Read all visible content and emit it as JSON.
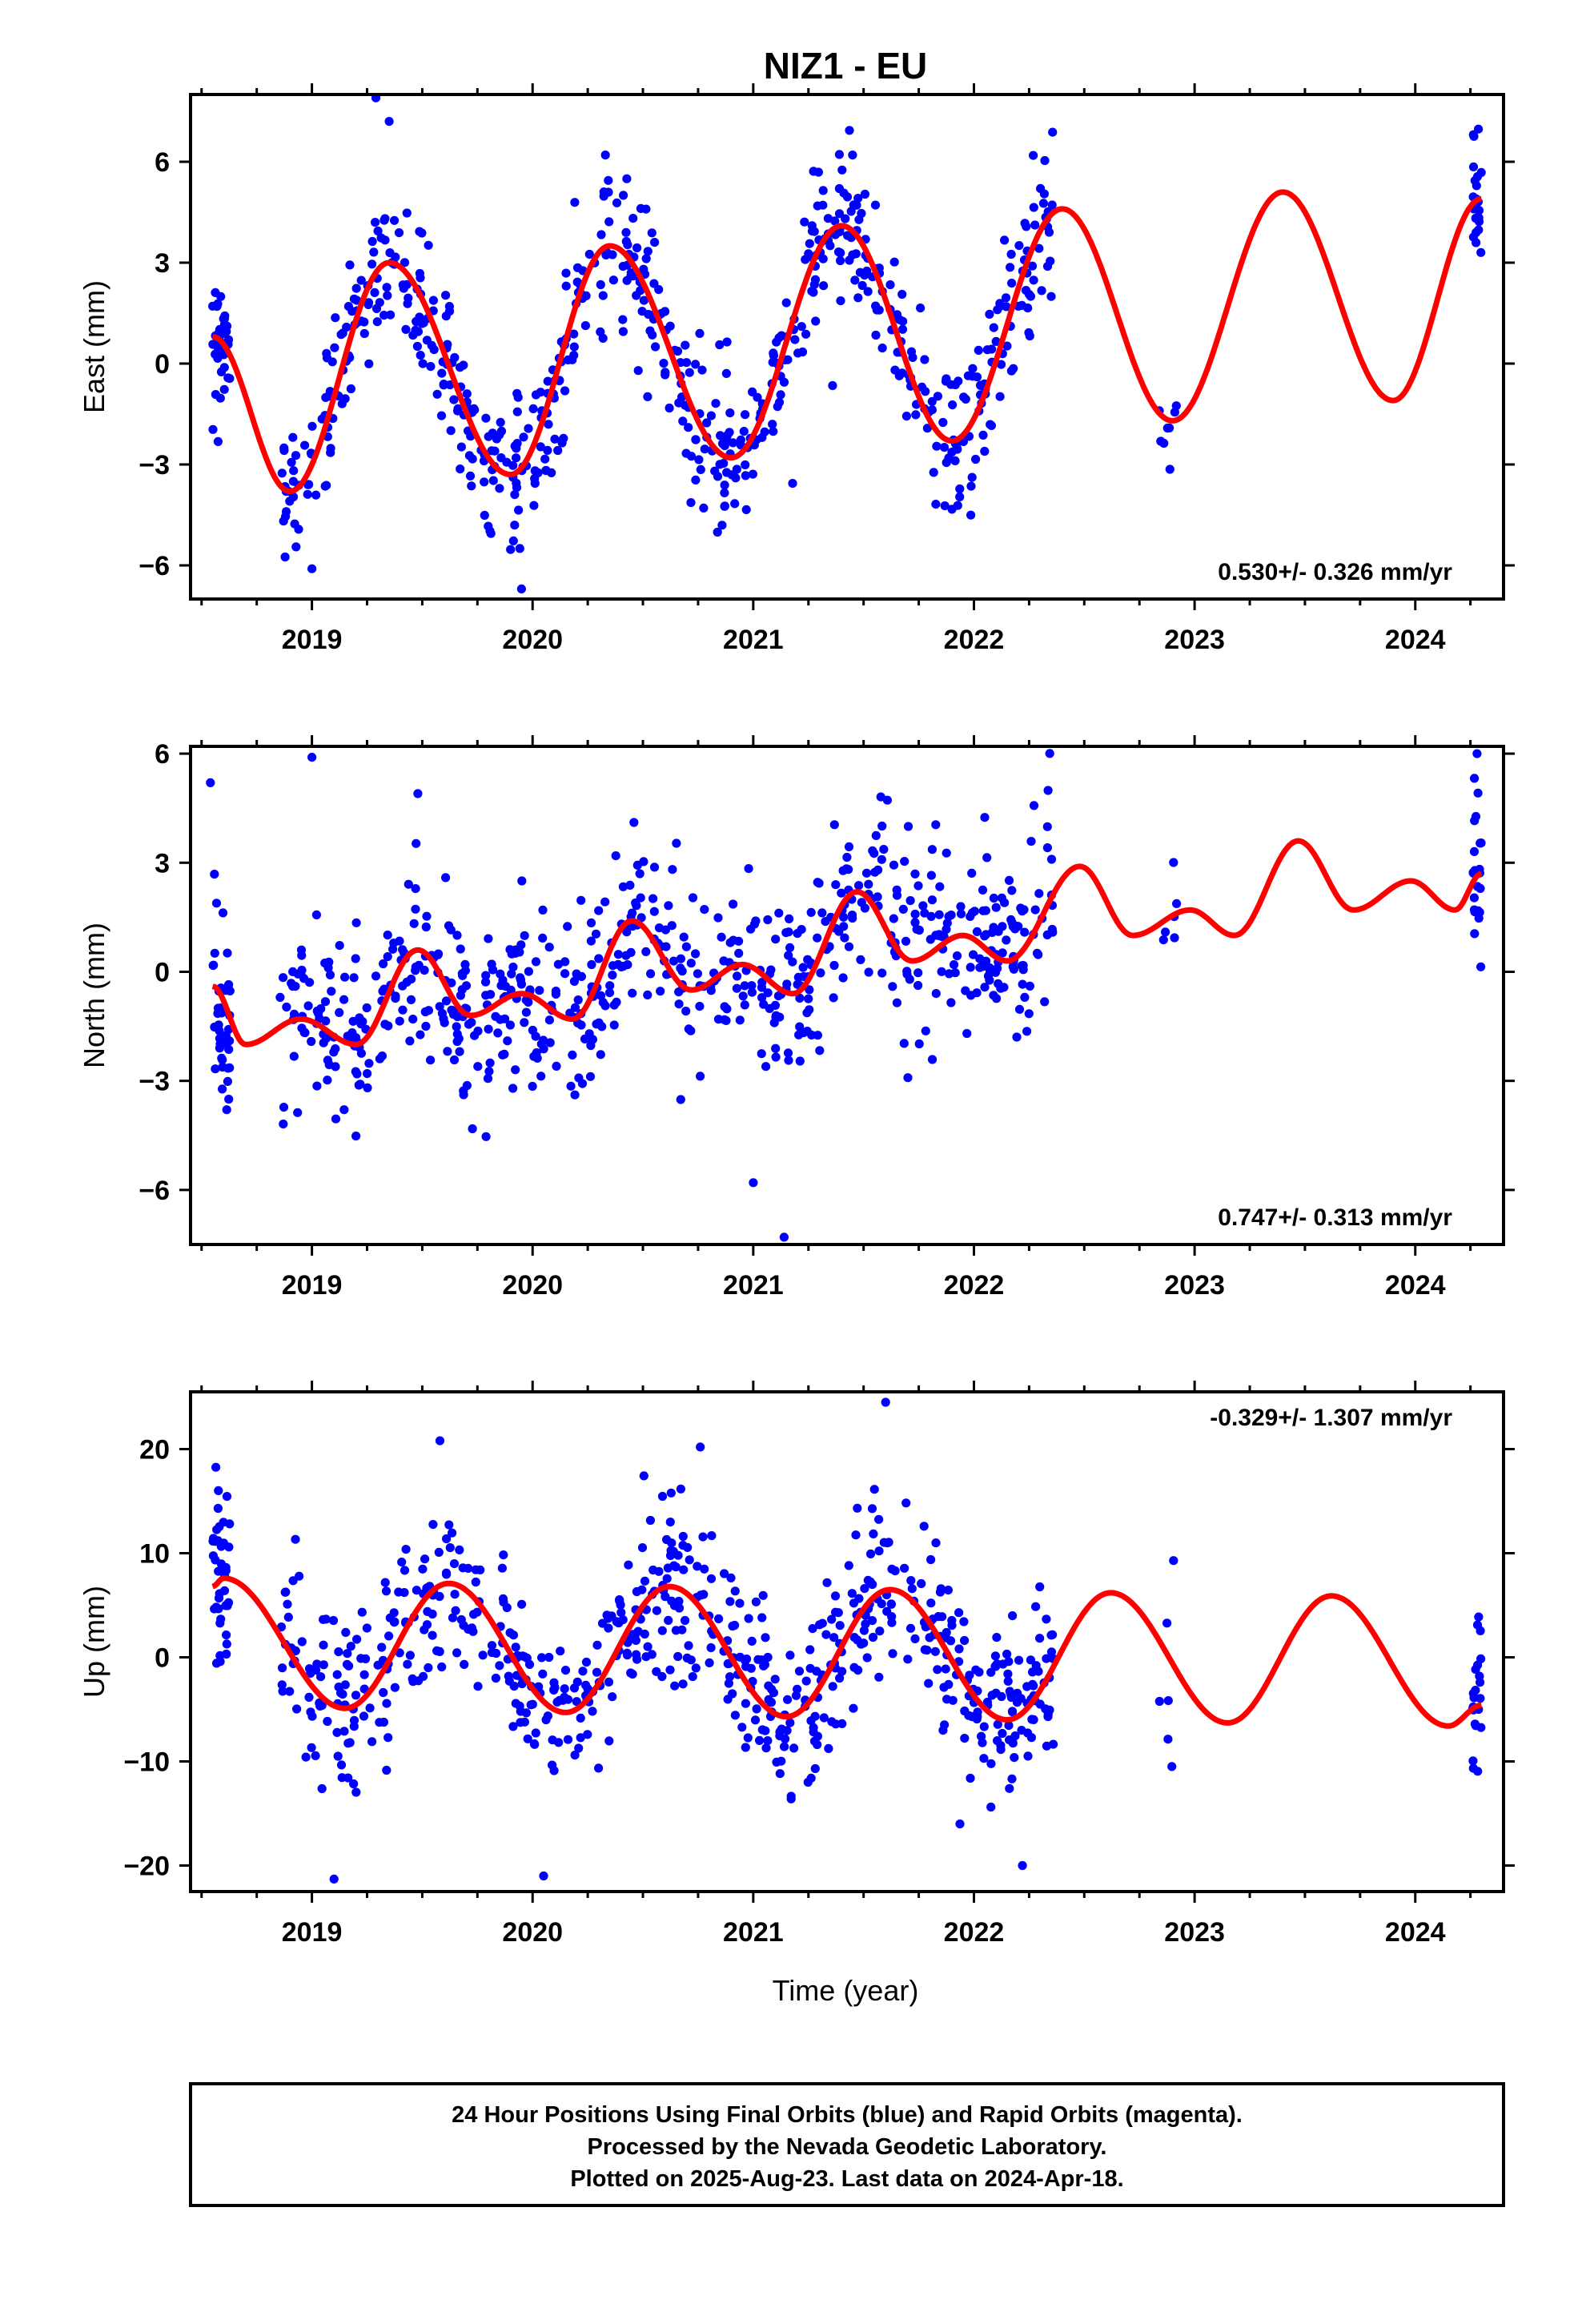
{
  "title": "NIZ1 - EU",
  "xlabel": "Time (year)",
  "footer": {
    "line1": "24 Hour Positions Using Final Orbits (blue) and Rapid Orbits (magenta).",
    "line2": "Processed by the Nevada Geodetic Laboratory.",
    "line3": "Plotted on 2025-Aug-23. Last data on 2024-Apr-18."
  },
  "colors": {
    "data": "#0000ff",
    "model": "#ff0000",
    "axes": "#000000"
  },
  "chart_data": [
    {
      "type": "scatter",
      "ylabel": "East (mm)",
      "rate": "0.530+/- 0.326 mm/yr",
      "rate_position": "bottom-right",
      "xlim": [
        2018.45,
        2024.4
      ],
      "ylim": [
        -7,
        8
      ],
      "yticks": [
        -6,
        -3,
        0,
        3,
        6
      ],
      "xticks": [
        2019,
        2020,
        2021,
        2022,
        2023,
        2024
      ],
      "model": {
        "x": [
          2018.55,
          2018.9,
          2019.35,
          2019.9,
          2020.35,
          2020.9,
          2021.4,
          2021.9,
          2022.4,
          2022.9,
          2023.4,
          2023.9,
          2024.3
        ],
        "y": [
          0.8,
          -3.8,
          3.0,
          -3.3,
          3.5,
          -2.8,
          4.1,
          -2.3,
          4.6,
          -1.7,
          5.1,
          -1.1,
          4.9
        ]
      },
      "segments": [
        {
          "start": 2018.55,
          "end": 2018.63,
          "amp": 3.2,
          "noise": 1.0,
          "count": 40
        },
        {
          "start": 2018.85,
          "end": 2022.36,
          "amp": 3.2,
          "noise": 1.15,
          "count": 680
        },
        {
          "start": 2022.84,
          "end": 2022.92,
          "amp": 3.2,
          "noise": 0.6,
          "count": 8
        },
        {
          "start": 2024.26,
          "end": 2024.3,
          "amp": 3.2,
          "noise": 1.0,
          "count": 22
        }
      ],
      "outliers": [
        {
          "x": 2019.29,
          "y": 7.9
        },
        {
          "x": 2019.35,
          "y": 7.2
        },
        {
          "x": 2020.33,
          "y": 6.2
        },
        {
          "x": 2021.45,
          "y": 6.2
        },
        {
          "x": 2019.95,
          "y": -6.7
        },
        {
          "x": 2019.0,
          "y": -6.1
        }
      ]
    },
    {
      "type": "scatter",
      "ylabel": "North (mm)",
      "rate": "0.747+/- 0.313 mm/yr",
      "rate_position": "bottom-right",
      "xlim": [
        2018.45,
        2024.4
      ],
      "ylim": [
        -7.5,
        6.2
      ],
      "yticks": [
        -6,
        -3,
        0,
        3,
        6
      ],
      "xticks": [
        2019,
        2020,
        2021,
        2022,
        2023,
        2024
      ],
      "model": {
        "x": [
          2018.55,
          2018.7,
          2018.95,
          2019.2,
          2019.48,
          2019.72,
          2019.95,
          2020.18,
          2020.45,
          2020.72,
          2020.95,
          2021.18,
          2021.47,
          2021.72,
          2021.95,
          2022.15,
          2022.48,
          2022.72,
          2022.98,
          2023.18,
          2023.47,
          2023.72,
          2023.98,
          2024.18,
          2024.3
        ],
        "y": [
          -0.4,
          -2.0,
          -1.3,
          -2.0,
          0.6,
          -1.2,
          -0.6,
          -1.3,
          1.4,
          -0.5,
          0.2,
          -0.6,
          2.2,
          0.3,
          1.0,
          0.3,
          2.9,
          1.0,
          1.7,
          1.0,
          3.6,
          1.7,
          2.5,
          1.7,
          2.7
        ]
      },
      "segments": [
        {
          "start": 2018.55,
          "end": 2018.63,
          "amp": 1.2,
          "noise": 1.6,
          "count": 40
        },
        {
          "start": 2018.85,
          "end": 2022.36,
          "amp": 1.2,
          "noise": 1.35,
          "count": 680
        },
        {
          "start": 2022.84,
          "end": 2022.92,
          "amp": 1.2,
          "noise": 1.0,
          "count": 6
        },
        {
          "start": 2024.26,
          "end": 2024.3,
          "amp": 1.2,
          "noise": 1.2,
          "count": 22
        }
      ],
      "outliers": [
        {
          "x": 2018.54,
          "y": 5.2
        },
        {
          "x": 2019.0,
          "y": 5.9
        },
        {
          "x": 2019.48,
          "y": 4.9
        },
        {
          "x": 2021.14,
          "y": -7.3
        },
        {
          "x": 2021.0,
          "y": -5.8
        },
        {
          "x": 2024.28,
          "y": 6.0
        }
      ]
    },
    {
      "type": "scatter",
      "ylabel": "Up (mm)",
      "rate": "-0.329+/- 1.307 mm/yr",
      "rate_position": "top-right",
      "xlim": [
        2018.45,
        2024.4
      ],
      "ylim": [
        -22.5,
        25.5
      ],
      "yticks": [
        -20,
        -10,
        0,
        10,
        20
      ],
      "xticks": [
        2019,
        2020,
        2021,
        2022,
        2023,
        2024
      ],
      "model": {
        "x": [
          2018.55,
          2018.6,
          2019.15,
          2019.62,
          2020.15,
          2020.62,
          2021.15,
          2021.62,
          2022.15,
          2022.62,
          2023.15,
          2023.62,
          2024.15,
          2024.3
        ],
        "y": [
          6.8,
          7.6,
          -4.9,
          7.1,
          -5.3,
          6.8,
          -5.7,
          6.5,
          -6.0,
          6.2,
          -6.3,
          5.9,
          -6.6,
          -4.6
        ]
      },
      "segments": [
        {
          "start": 2018.55,
          "end": 2018.63,
          "amp": 6.5,
          "noise": 4.5,
          "count": 40
        },
        {
          "start": 2018.85,
          "end": 2022.36,
          "amp": 6.5,
          "noise": 4.2,
          "count": 680
        },
        {
          "start": 2022.84,
          "end": 2022.92,
          "amp": 6.5,
          "noise": 6.0,
          "count": 6
        },
        {
          "start": 2024.26,
          "end": 2024.3,
          "amp": 6.5,
          "noise": 4.5,
          "count": 22
        }
      ],
      "outliers": [
        {
          "x": 2021.6,
          "y": 24.5
        },
        {
          "x": 2019.58,
          "y": 20.8
        },
        {
          "x": 2020.76,
          "y": 20.2
        },
        {
          "x": 2019.1,
          "y": -21.3
        },
        {
          "x": 2020.05,
          "y": -21.0
        },
        {
          "x": 2022.22,
          "y": -20.0
        }
      ]
    }
  ]
}
